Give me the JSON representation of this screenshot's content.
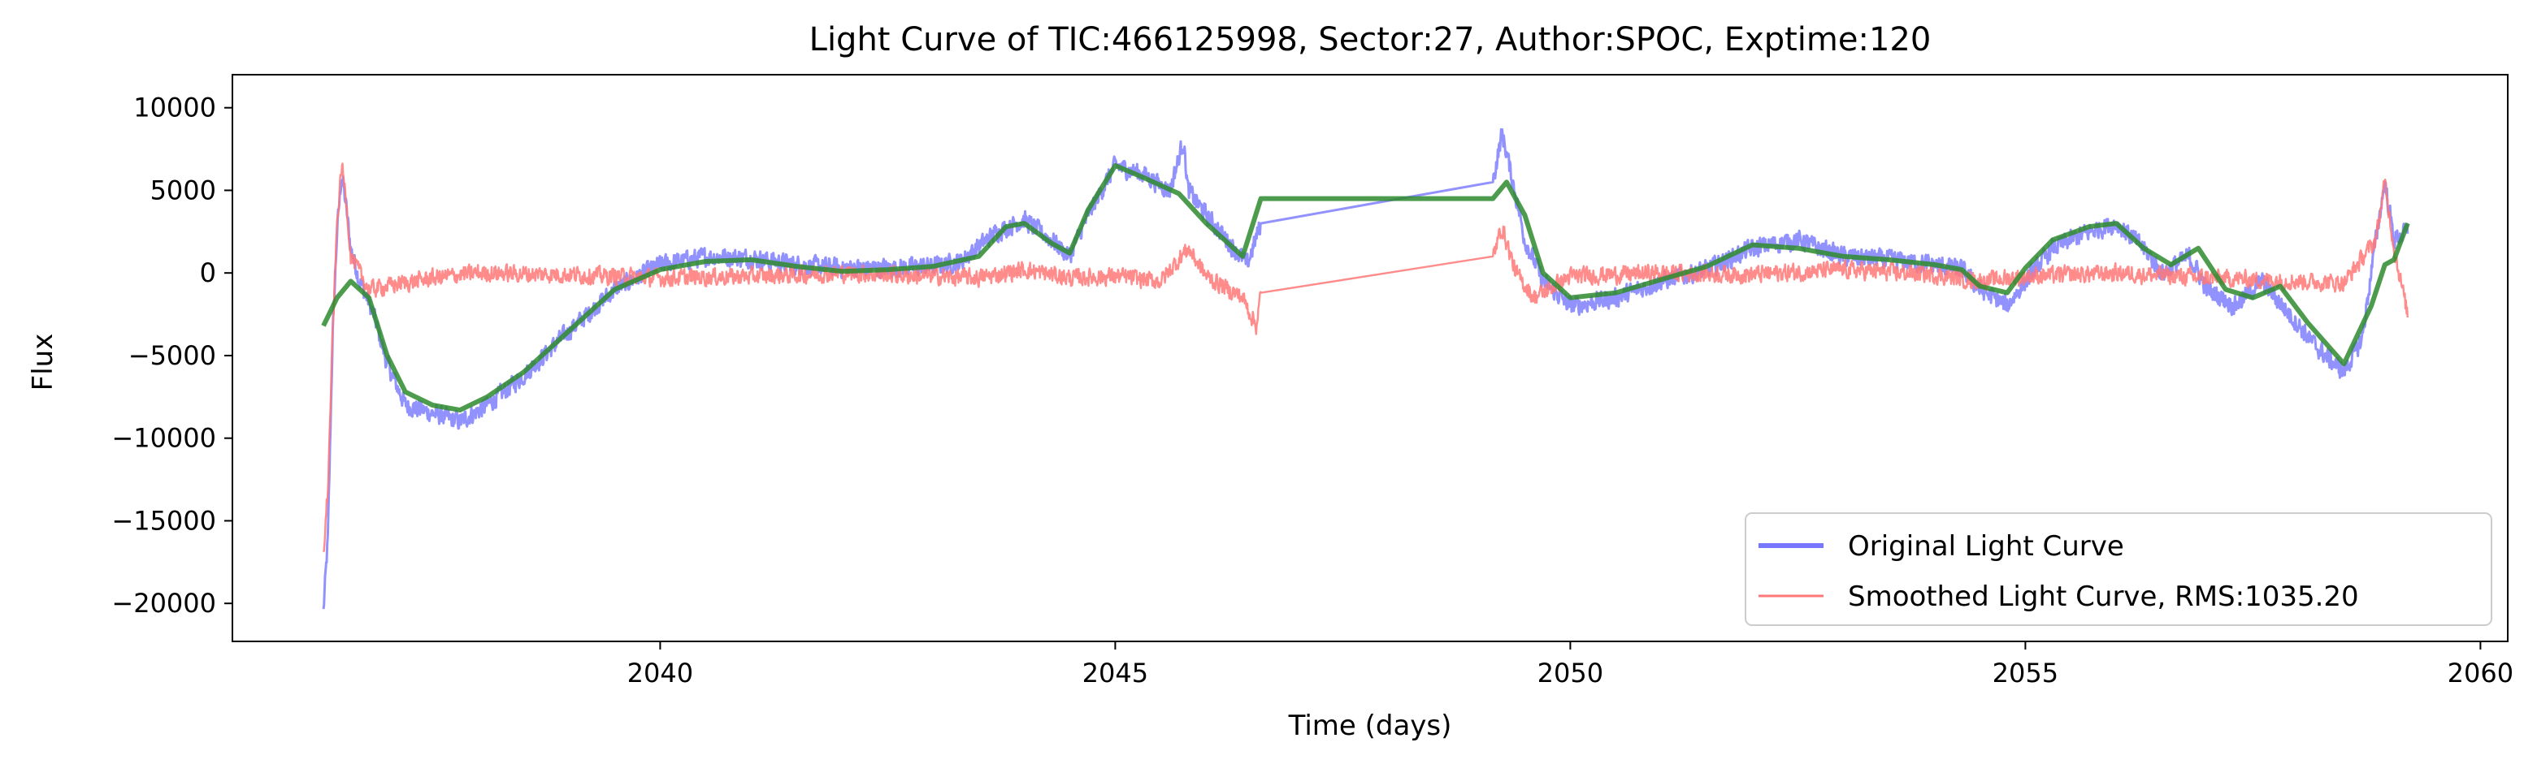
{
  "chart_data": {
    "type": "line",
    "title": "Light Curve of TIC:466125998, Sector:27, Author:SPOC, Exptime:120",
    "xlabel": "Time (days)",
    "ylabel": "Flux",
    "xlim": [
      2035.3,
      2060.3
    ],
    "ylim": [
      -22300,
      12000
    ],
    "xticks": [
      2040,
      2045,
      2050,
      2055,
      2060
    ],
    "yticks": [
      -20000,
      -15000,
      -10000,
      -5000,
      0,
      5000,
      10000
    ],
    "grid": false,
    "legend_position": "lower-right",
    "gap": [
      2046.6,
      2049.15
    ],
    "series": [
      {
        "name": "Original Light Curve",
        "color": "#7777ff",
        "noise": 650,
        "points": [
          [
            2036.3,
            -20500
          ],
          [
            2036.35,
            -16000
          ],
          [
            2036.4,
            -4000
          ],
          [
            2036.45,
            2500
          ],
          [
            2036.5,
            6000
          ],
          [
            2036.55,
            4000
          ],
          [
            2036.6,
            1500
          ],
          [
            2036.7,
            -500
          ],
          [
            2036.85,
            -2500
          ],
          [
            2037.0,
            -5500
          ],
          [
            2037.2,
            -8000
          ],
          [
            2037.5,
            -8500
          ],
          [
            2037.8,
            -9000
          ],
          [
            2038.1,
            -8000
          ],
          [
            2038.5,
            -6200
          ],
          [
            2039.0,
            -3500
          ],
          [
            2039.5,
            -1000
          ],
          [
            2040.0,
            500
          ],
          [
            2040.5,
            1000
          ],
          [
            2041.0,
            900
          ],
          [
            2041.5,
            500
          ],
          [
            2042.0,
            300
          ],
          [
            2042.5,
            300
          ],
          [
            2043.0,
            400
          ],
          [
            2043.3,
            700
          ],
          [
            2043.7,
            2500
          ],
          [
            2044.0,
            3200
          ],
          [
            2044.3,
            2000
          ],
          [
            2044.5,
            1000
          ],
          [
            2044.7,
            3500
          ],
          [
            2045.0,
            6500
          ],
          [
            2045.3,
            6000
          ],
          [
            2045.6,
            5000
          ],
          [
            2045.75,
            8000
          ],
          [
            2045.8,
            5000
          ],
          [
            2046.0,
            3500
          ],
          [
            2046.3,
            1500
          ],
          [
            2046.45,
            500
          ],
          [
            2046.6,
            3000
          ],
          [
            2049.15,
            5500
          ],
          [
            2049.25,
            8500
          ],
          [
            2049.35,
            6000
          ],
          [
            2049.5,
            2000
          ],
          [
            2049.7,
            -500
          ],
          [
            2050.0,
            -2000
          ],
          [
            2050.5,
            -1500
          ],
          [
            2051.0,
            -500
          ],
          [
            2051.5,
            200
          ],
          [
            2052.0,
            1500
          ],
          [
            2052.5,
            2000
          ],
          [
            2053.0,
            1000
          ],
          [
            2053.5,
            800
          ],
          [
            2054.0,
            500
          ],
          [
            2054.3,
            200
          ],
          [
            2054.5,
            -1000
          ],
          [
            2054.8,
            -2000
          ],
          [
            2055.0,
            -500
          ],
          [
            2055.3,
            1500
          ],
          [
            2055.7,
            2500
          ],
          [
            2056.0,
            3000
          ],
          [
            2056.3,
            1500
          ],
          [
            2056.5,
            0
          ],
          [
            2056.8,
            1000
          ],
          [
            2057.0,
            -1000
          ],
          [
            2057.3,
            -2000
          ],
          [
            2057.6,
            -500
          ],
          [
            2057.9,
            -2500
          ],
          [
            2058.2,
            -4500
          ],
          [
            2058.5,
            -6000
          ],
          [
            2058.7,
            -4000
          ],
          [
            2058.85,
            2000
          ],
          [
            2058.95,
            5500
          ],
          [
            2059.05,
            2000
          ],
          [
            2059.2,
            2500
          ]
        ]
      },
      {
        "name": "Smoothed Light Curve, RMS:1035.20",
        "color": "#ff7777",
        "noise": 600,
        "points": [
          [
            2036.3,
            -17000
          ],
          [
            2036.35,
            -13000
          ],
          [
            2036.4,
            -4000
          ],
          [
            2036.45,
            3000
          ],
          [
            2036.5,
            6500
          ],
          [
            2036.55,
            4500
          ],
          [
            2036.6,
            1000
          ],
          [
            2036.8,
            -1000
          ],
          [
            2037.0,
            -800
          ],
          [
            2037.5,
            -300
          ],
          [
            2038.0,
            0
          ],
          [
            2039.0,
            -100
          ],
          [
            2040.0,
            -300
          ],
          [
            2041.0,
            -200
          ],
          [
            2042.0,
            0
          ],
          [
            2043.0,
            -200
          ],
          [
            2043.5,
            -300
          ],
          [
            2044.0,
            200
          ],
          [
            2044.5,
            -300
          ],
          [
            2045.0,
            -200
          ],
          [
            2045.5,
            -500
          ],
          [
            2045.8,
            1500
          ],
          [
            2046.0,
            -200
          ],
          [
            2046.4,
            -1500
          ],
          [
            2046.55,
            -3200
          ],
          [
            2046.6,
            -1200
          ],
          [
            2049.15,
            1000
          ],
          [
            2049.25,
            2800
          ],
          [
            2049.4,
            0
          ],
          [
            2049.6,
            -1500
          ],
          [
            2050.0,
            -200
          ],
          [
            2051.0,
            0
          ],
          [
            2052.0,
            -100
          ],
          [
            2053.0,
            200
          ],
          [
            2054.0,
            -100
          ],
          [
            2054.5,
            -500
          ],
          [
            2055.0,
            -200
          ],
          [
            2056.0,
            0
          ],
          [
            2057.0,
            -300
          ],
          [
            2058.0,
            -500
          ],
          [
            2058.5,
            -600
          ],
          [
            2058.85,
            2000
          ],
          [
            2058.95,
            5500
          ],
          [
            2059.05,
            1500
          ],
          [
            2059.2,
            -2500
          ]
        ]
      },
      {
        "name": "",
        "color": "#2e8b2e",
        "noise": 0,
        "points": [
          [
            2036.3,
            -3200
          ],
          [
            2036.45,
            -1500
          ],
          [
            2036.6,
            -500
          ],
          [
            2036.8,
            -1500
          ],
          [
            2037.0,
            -5000
          ],
          [
            2037.2,
            -7200
          ],
          [
            2037.5,
            -8000
          ],
          [
            2037.8,
            -8300
          ],
          [
            2038.1,
            -7500
          ],
          [
            2038.5,
            -6000
          ],
          [
            2039.0,
            -3500
          ],
          [
            2039.5,
            -1000
          ],
          [
            2040.0,
            200
          ],
          [
            2040.5,
            700
          ],
          [
            2041.0,
            800
          ],
          [
            2041.5,
            400
          ],
          [
            2042.0,
            100
          ],
          [
            2042.5,
            200
          ],
          [
            2043.0,
            400
          ],
          [
            2043.5,
            1000
          ],
          [
            2043.8,
            2800
          ],
          [
            2044.0,
            3000
          ],
          [
            2044.3,
            1800
          ],
          [
            2044.5,
            1200
          ],
          [
            2044.7,
            3800
          ],
          [
            2045.0,
            6500
          ],
          [
            2045.3,
            5800
          ],
          [
            2045.7,
            4800
          ],
          [
            2046.0,
            3000
          ],
          [
            2046.4,
            1000
          ],
          [
            2046.6,
            4500
          ],
          [
            2049.15,
            4500
          ],
          [
            2049.3,
            5500
          ],
          [
            2049.5,
            3500
          ],
          [
            2049.7,
            0
          ],
          [
            2050.0,
            -1500
          ],
          [
            2050.5,
            -1200
          ],
          [
            2051.0,
            -400
          ],
          [
            2051.5,
            400
          ],
          [
            2052.0,
            1700
          ],
          [
            2052.5,
            1500
          ],
          [
            2053.0,
            1000
          ],
          [
            2053.5,
            800
          ],
          [
            2054.0,
            500
          ],
          [
            2054.3,
            200
          ],
          [
            2054.5,
            -800
          ],
          [
            2054.8,
            -1200
          ],
          [
            2055.0,
            300
          ],
          [
            2055.3,
            2000
          ],
          [
            2055.7,
            2800
          ],
          [
            2056.0,
            3000
          ],
          [
            2056.3,
            1500
          ],
          [
            2056.6,
            500
          ],
          [
            2056.9,
            1500
          ],
          [
            2057.2,
            -1000
          ],
          [
            2057.5,
            -1500
          ],
          [
            2057.8,
            -800
          ],
          [
            2058.1,
            -3000
          ],
          [
            2058.5,
            -5500
          ],
          [
            2058.8,
            -2000
          ],
          [
            2058.95,
            500
          ],
          [
            2059.05,
            800
          ],
          [
            2059.2,
            3000
          ]
        ]
      }
    ]
  }
}
